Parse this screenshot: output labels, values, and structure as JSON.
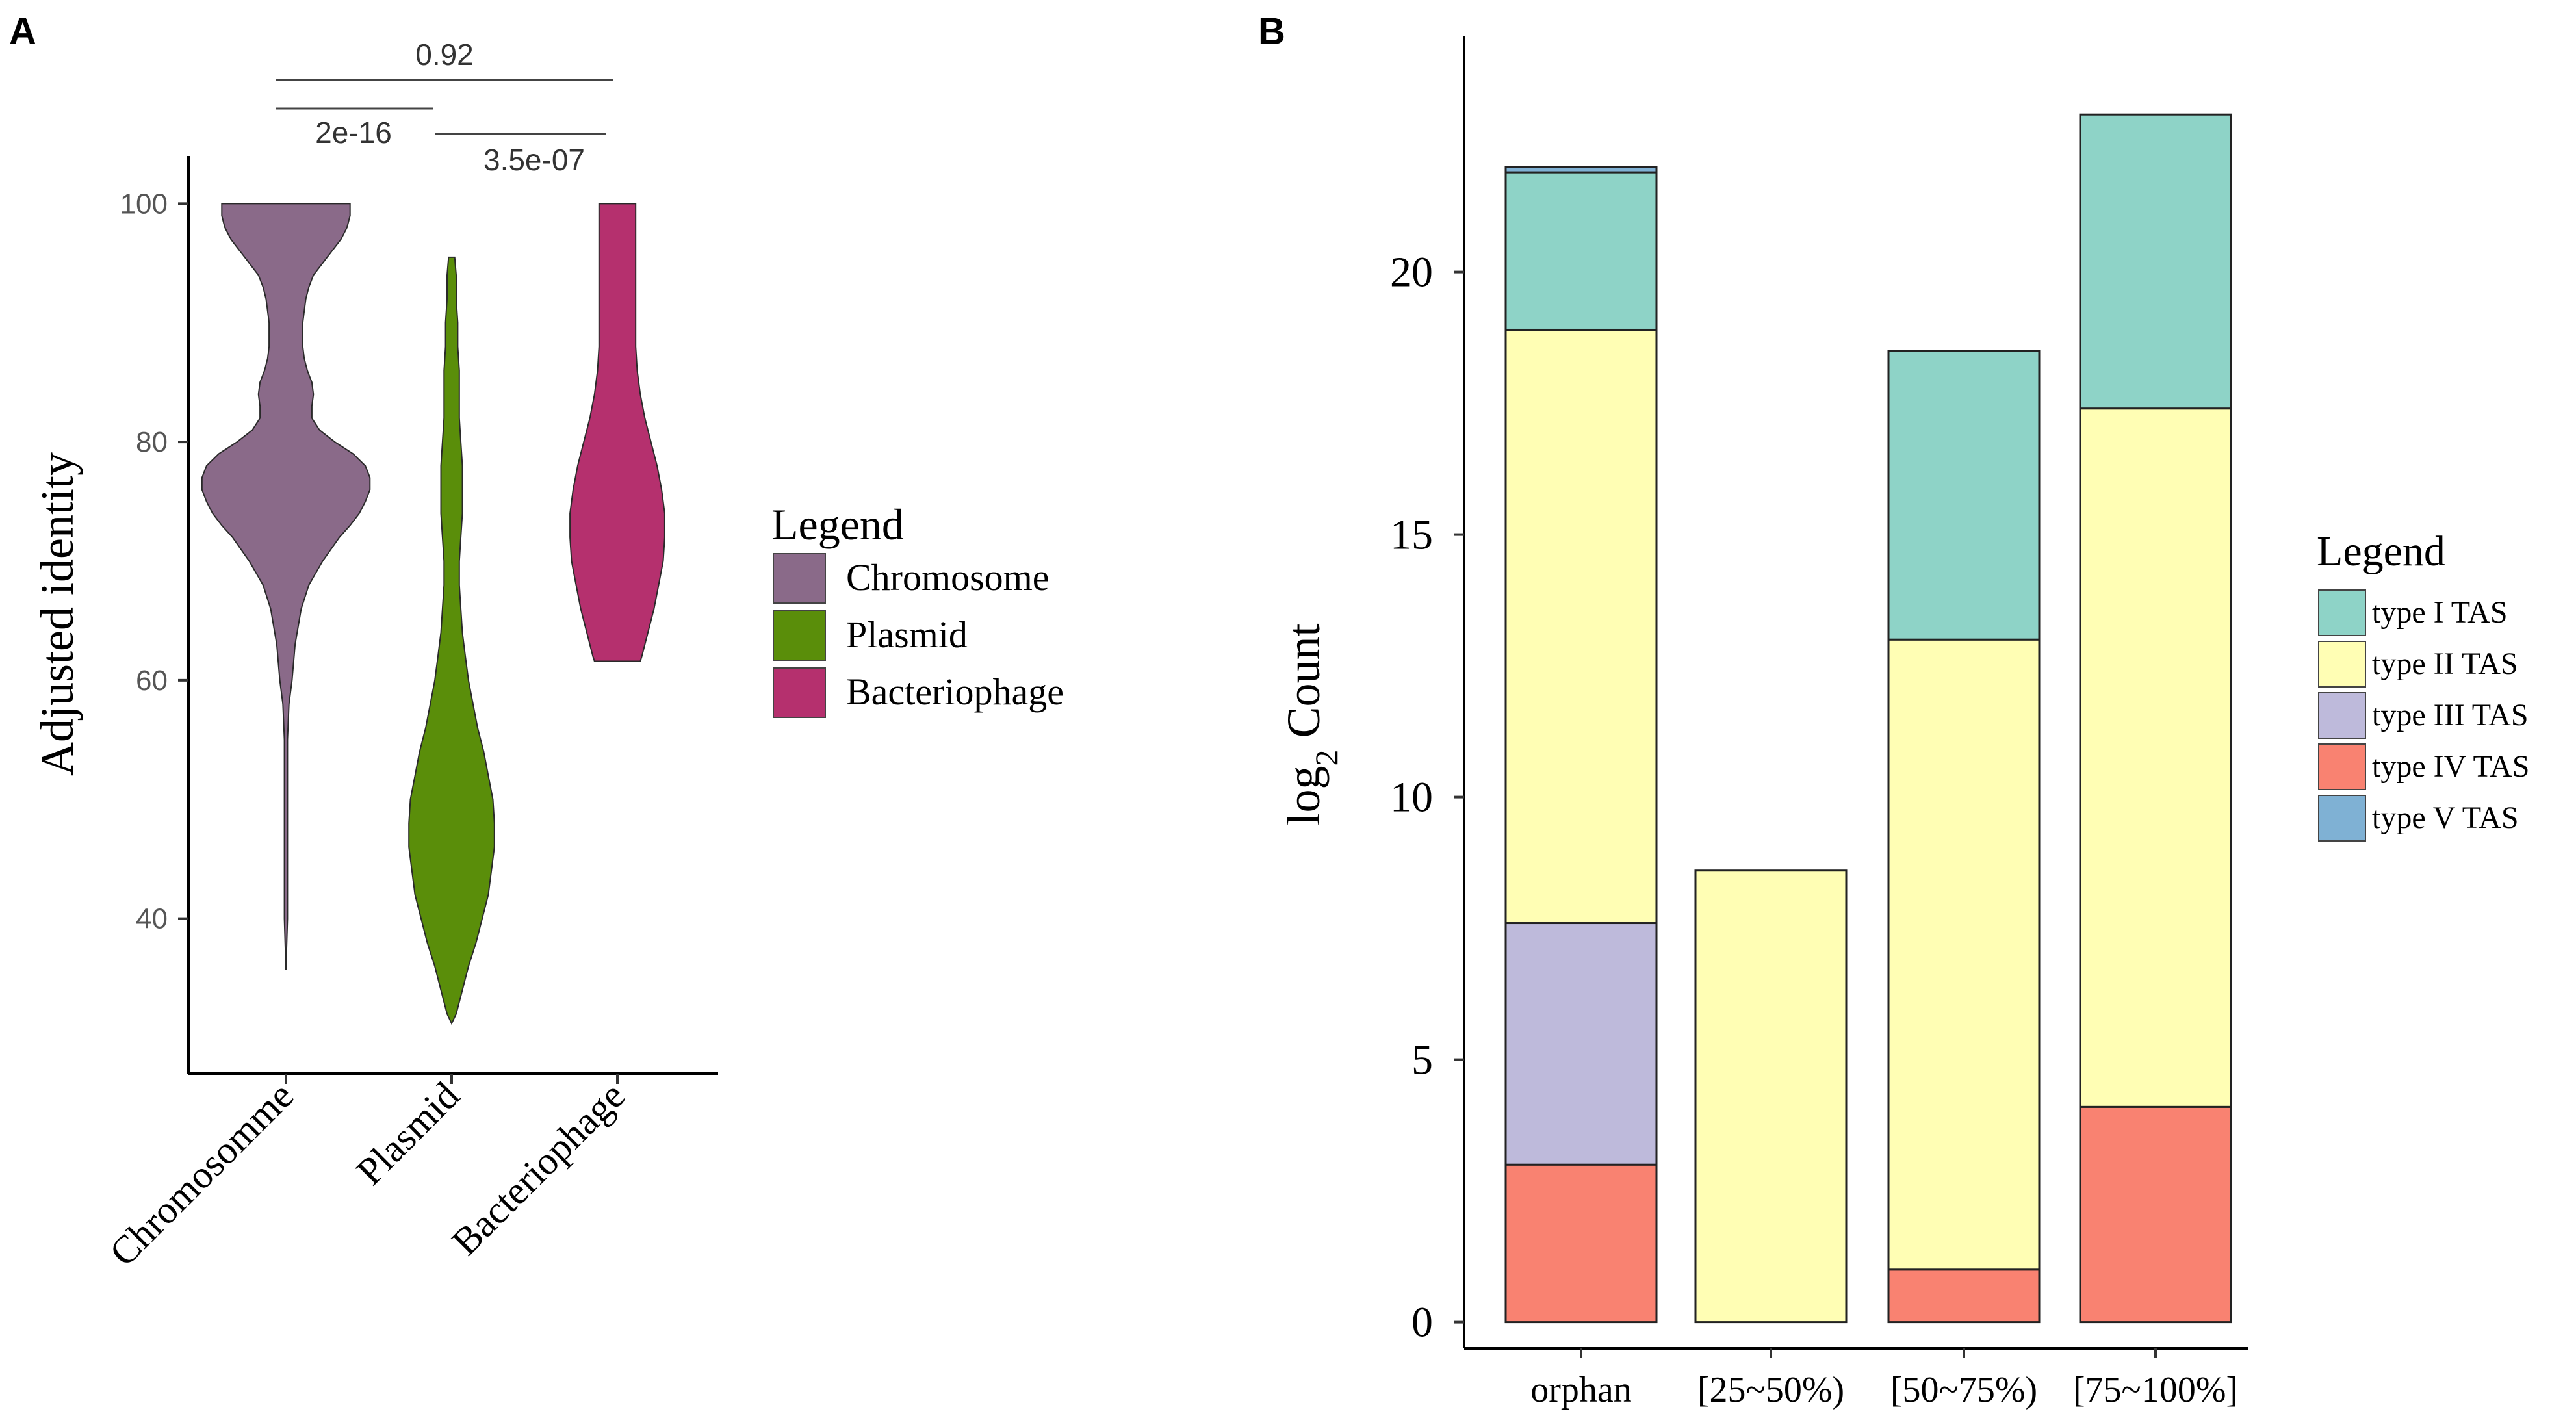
{
  "panels": {
    "a": {
      "label": "A"
    },
    "b": {
      "label": "B"
    }
  },
  "chart_data": [
    {
      "type": "violin",
      "panel": "A",
      "title": "",
      "xlabel": "",
      "ylabel": "Adjusted identity",
      "ylim": [
        27,
        104
      ],
      "yticks": [
        40,
        60,
        80,
        100
      ],
      "categories": [
        "Chromosomme",
        "Plasmid",
        "Bacteriophage"
      ],
      "series": [
        {
          "name": "Chromosome",
          "category": "Chromosomme",
          "color": "#8a6a89",
          "min": 35.7,
          "max": 100,
          "profile": [
            [
              35.7,
              0
            ],
            [
              40,
              0.01
            ],
            [
              50,
              0.01
            ],
            [
              55,
              0.01
            ],
            [
              58,
              0.02
            ],
            [
              60,
              0.04
            ],
            [
              63,
              0.06
            ],
            [
              66,
              0.1
            ],
            [
              68,
              0.15
            ],
            [
              70,
              0.24
            ],
            [
              72,
              0.35
            ],
            [
              73,
              0.42
            ],
            [
              74,
              0.48
            ],
            [
              75,
              0.52
            ],
            [
              76,
              0.55
            ],
            [
              77,
              0.55
            ],
            [
              78,
              0.52
            ],
            [
              79,
              0.44
            ],
            [
              80,
              0.32
            ],
            [
              81,
              0.22
            ],
            [
              82,
              0.17
            ],
            [
              83,
              0.17
            ],
            [
              84,
              0.18
            ],
            [
              85,
              0.17
            ],
            [
              86,
              0.14
            ],
            [
              87,
              0.12
            ],
            [
              88,
              0.11
            ],
            [
              89,
              0.11
            ],
            [
              90,
              0.11
            ],
            [
              91,
              0.12
            ],
            [
              92,
              0.13
            ],
            [
              93,
              0.15
            ],
            [
              94,
              0.18
            ],
            [
              95,
              0.24
            ],
            [
              96,
              0.3
            ],
            [
              97,
              0.36
            ],
            [
              98,
              0.4
            ],
            [
              99,
              0.42
            ],
            [
              100,
              0.42
            ]
          ]
        },
        {
          "name": "Plasmid",
          "category": "Plasmid",
          "color": "#5a8e0a",
          "min": 31.2,
          "max": 95.5,
          "profile": [
            [
              31.2,
              0
            ],
            [
              32,
              0.03
            ],
            [
              34,
              0.07
            ],
            [
              36,
              0.11
            ],
            [
              38,
              0.16
            ],
            [
              40,
              0.2
            ],
            [
              42,
              0.24
            ],
            [
              44,
              0.26
            ],
            [
              46,
              0.28
            ],
            [
              48,
              0.28
            ],
            [
              50,
              0.27
            ],
            [
              52,
              0.24
            ],
            [
              54,
              0.21
            ],
            [
              56,
              0.17
            ],
            [
              58,
              0.14
            ],
            [
              60,
              0.11
            ],
            [
              62,
              0.09
            ],
            [
              64,
              0.07
            ],
            [
              66,
              0.06
            ],
            [
              68,
              0.05
            ],
            [
              70,
              0.05
            ],
            [
              72,
              0.06
            ],
            [
              74,
              0.07
            ],
            [
              76,
              0.07
            ],
            [
              78,
              0.07
            ],
            [
              80,
              0.06
            ],
            [
              82,
              0.05
            ],
            [
              84,
              0.05
            ],
            [
              86,
              0.05
            ],
            [
              88,
              0.04
            ],
            [
              90,
              0.04
            ],
            [
              92,
              0.03
            ],
            [
              94,
              0.03
            ],
            [
              95.5,
              0.02
            ]
          ]
        },
        {
          "name": "Bacteriophage",
          "category": "Bacteriophage",
          "color": "#b5306e",
          "min": 61.6,
          "max": 100,
          "profile": [
            [
              61.6,
              0.15
            ],
            [
              62,
              0.16
            ],
            [
              64,
              0.2
            ],
            [
              66,
              0.24
            ],
            [
              68,
              0.27
            ],
            [
              70,
              0.3
            ],
            [
              72,
              0.31
            ],
            [
              74,
              0.31
            ],
            [
              76,
              0.29
            ],
            [
              78,
              0.26
            ],
            [
              80,
              0.22
            ],
            [
              82,
              0.18
            ],
            [
              84,
              0.15
            ],
            [
              86,
              0.13
            ],
            [
              88,
              0.12
            ],
            [
              90,
              0.12
            ],
            [
              92,
              0.12
            ],
            [
              94,
              0.12
            ],
            [
              96,
              0.12
            ],
            [
              98,
              0.12
            ],
            [
              100,
              0.12
            ]
          ]
        }
      ],
      "comparisons": [
        {
          "groups": [
            "Chromosomme",
            "Bacteriophage"
          ],
          "label": "0.92"
        },
        {
          "groups": [
            "Chromosomme",
            "Plasmid"
          ],
          "label": "2e-16"
        },
        {
          "groups": [
            "Plasmid",
            "Bacteriophage"
          ],
          "label": "3.5e-07"
        }
      ],
      "legend": {
        "title": "Legend",
        "entries": [
          {
            "label": "Chromosome",
            "color": "#8a6a89"
          },
          {
            "label": "Plasmid",
            "color": "#5a8e0a"
          },
          {
            "label": "Bacteriophage",
            "color": "#b5306e"
          }
        ]
      }
    },
    {
      "type": "bar",
      "stacked": true,
      "panel": "B",
      "title": "",
      "xlabel": "",
      "ylabel_main": "log",
      "ylabel_sub": "2",
      "ylabel_tail": " Count",
      "ylim": [
        -0.5,
        24.5
      ],
      "yticks": [
        0,
        5,
        10,
        15,
        20
      ],
      "categories": [
        "orphan",
        "[25~50%)",
        "[50~75%)",
        "[75~100%]"
      ],
      "series": [
        {
          "name": "type IV TAS",
          "color": "#f98271",
          "values": [
            3.0,
            0,
            1.0,
            4.1
          ]
        },
        {
          "name": "type III TAS",
          "color": "#bebadb",
          "values": [
            4.6,
            0,
            0,
            0
          ]
        },
        {
          "name": "type II TAS",
          "color": "#fffeb4",
          "values": [
            11.3,
            8.6,
            12.0,
            13.3
          ]
        },
        {
          "name": "type I TAS",
          "color": "#8ed3c7",
          "values": [
            3.0,
            0,
            5.5,
            5.6
          ]
        },
        {
          "name": "type V TAS",
          "color": "#7fb1d4",
          "values": [
            0.1,
            0,
            0,
            0
          ]
        }
      ],
      "legend": {
        "title": "Legend",
        "entries": [
          {
            "label": "type I TAS",
            "color": "#8ed3c7"
          },
          {
            "label": "type II TAS",
            "color": "#fffeb4"
          },
          {
            "label": "type III TAS",
            "color": "#bebadb"
          },
          {
            "label": "type IV TAS",
            "color": "#f98271"
          },
          {
            "label": "type V TAS",
            "color": "#7fb1d4"
          }
        ]
      }
    }
  ]
}
